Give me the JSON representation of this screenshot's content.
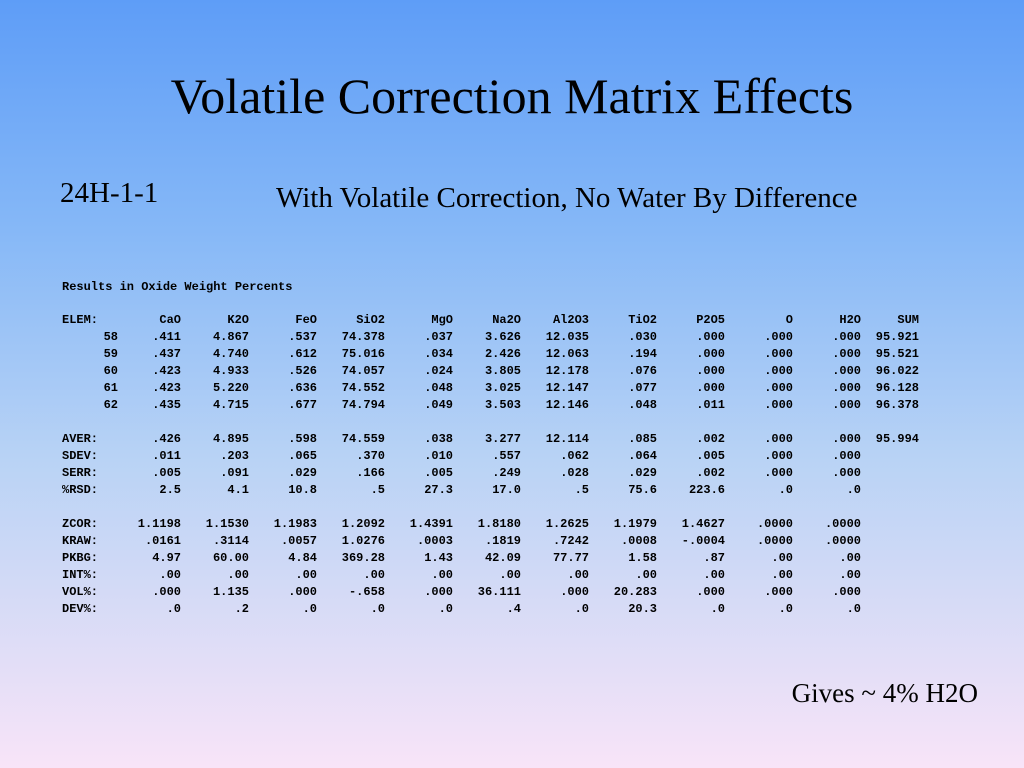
{
  "title": "Volatile Correction Matrix Effects",
  "sample_id": "24H-1-1",
  "condition": "With Volatile Correction, No Water By Difference",
  "table": {
    "heading": "Results in Oxide Weight Percents",
    "columns": [
      "ELEM:",
      "CaO",
      "K2O",
      "FeO",
      "SiO2",
      "MgO",
      "Na2O",
      "Al2O3",
      "TiO2",
      "P2O5",
      "O",
      "H2O",
      "SUM"
    ],
    "lines": [
      [
        "58",
        ".411",
        "4.867",
        ".537",
        "74.378",
        ".037",
        "3.626",
        "12.035",
        ".030",
        ".000",
        ".000",
        ".000",
        "95.921"
      ],
      [
        "59",
        ".437",
        "4.740",
        ".612",
        "75.016",
        ".034",
        "2.426",
        "12.063",
        ".194",
        ".000",
        ".000",
        ".000",
        "95.521"
      ],
      [
        "60",
        ".423",
        "4.933",
        ".526",
        "74.057",
        ".024",
        "3.805",
        "12.178",
        ".076",
        ".000",
        ".000",
        ".000",
        "96.022"
      ],
      [
        "61",
        ".423",
        "5.220",
        ".636",
        "74.552",
        ".048",
        "3.025",
        "12.147",
        ".077",
        ".000",
        ".000",
        ".000",
        "96.128"
      ],
      [
        "62",
        ".435",
        "4.715",
        ".677",
        "74.794",
        ".049",
        "3.503",
        "12.146",
        ".048",
        ".011",
        ".000",
        ".000",
        "96.378"
      ]
    ],
    "statistics": [
      [
        "AVER:",
        ".426",
        "4.895",
        ".598",
        "74.559",
        ".038",
        "3.277",
        "12.114",
        ".085",
        ".002",
        ".000",
        ".000",
        "95.994"
      ],
      [
        "SDEV:",
        ".011",
        ".203",
        ".065",
        ".370",
        ".010",
        ".557",
        ".062",
        ".064",
        ".005",
        ".000",
        ".000",
        ""
      ],
      [
        "SERR:",
        ".005",
        ".091",
        ".029",
        ".166",
        ".005",
        ".249",
        ".028",
        ".029",
        ".002",
        ".000",
        ".000",
        ""
      ],
      [
        "%RSD:",
        "2.5",
        "4.1",
        "10.8",
        ".5",
        "27.3",
        "17.0",
        ".5",
        "75.6",
        "223.6",
        ".0",
        ".0",
        ""
      ]
    ],
    "corrections": [
      [
        "ZCOR:",
        "1.1198",
        "1.1530",
        "1.1983",
        "1.2092",
        "1.4391",
        "1.8180",
        "1.2625",
        "1.1979",
        "1.4627",
        ".0000",
        ".0000",
        ""
      ],
      [
        "KRAW:",
        ".0161",
        ".3114",
        ".0057",
        "1.0276",
        ".0003",
        ".1819",
        ".7242",
        ".0008",
        "-.0004",
        ".0000",
        ".0000",
        ""
      ],
      [
        "PKBG:",
        "4.97",
        "60.00",
        "4.84",
        "369.28",
        "1.43",
        "42.09",
        "77.77",
        "1.58",
        ".87",
        ".00",
        ".00",
        ""
      ],
      [
        "INT%:",
        ".00",
        ".00",
        ".00",
        ".00",
        ".00",
        ".00",
        ".00",
        ".00",
        ".00",
        ".00",
        ".00",
        ""
      ],
      [
        "VOL%:",
        ".000",
        "1.135",
        ".000",
        "-.658",
        ".000",
        "36.111",
        ".000",
        "20.283",
        ".000",
        ".000",
        ".000",
        ""
      ],
      [
        "DEV%:",
        ".0",
        ".2",
        ".0",
        ".0",
        ".0",
        ".4",
        ".0",
        "20.3",
        ".0",
        ".0",
        ".0",
        ""
      ]
    ]
  },
  "conclusion": "Gives ~ 4% H2O"
}
